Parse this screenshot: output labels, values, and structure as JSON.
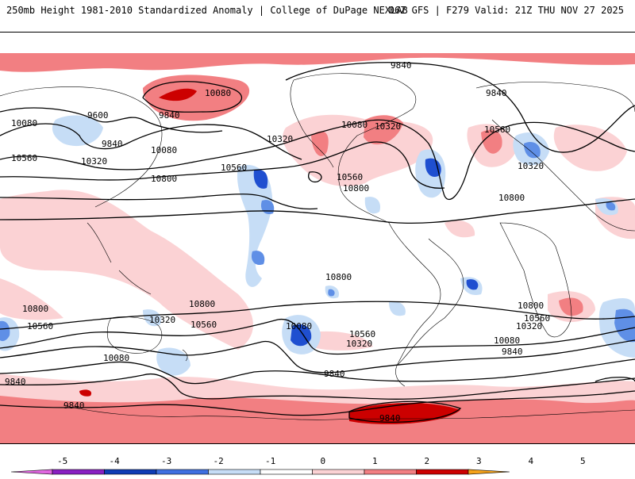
{
  "header": {
    "left": "250mb Height 1981-2010 Standardized Anomaly | College of DuPage NEXLAB",
    "right": "06Z GFS | F279 Valid: 21Z THU NOV 27 2025"
  },
  "contour_labels": [
    "9840",
    "10080",
    "9600",
    "9840",
    "10080",
    "9840",
    "10080",
    "10320",
    "10560",
    "10320",
    "10800",
    "10560",
    "10560",
    "10800",
    "10080",
    "10320",
    "9840",
    "10080",
    "10560",
    "10320",
    "10800",
    "10800",
    "10800",
    "10560",
    "10320",
    "10080",
    "10560",
    "10320",
    "10800",
    "10560",
    "10320",
    "10080",
    "9840",
    "10080",
    "9840",
    "9840",
    "9840"
  ],
  "colors": {
    "pos_light": "#fbd2d4",
    "pos_mid": "#f27f82",
    "pos_dark": "#cc0000",
    "neg_light": "#c6ddf6",
    "neg_mid": "#5f8fe6",
    "neg_dark": "#1f4fd0"
  },
  "colorbar": {
    "ticks": [
      "-5",
      "-4",
      "-3",
      "-2",
      "-1",
      "0",
      "1",
      "2",
      "3",
      "4",
      "5"
    ],
    "colors": [
      "#e066e0",
      "#8a1fc2",
      "#0f3cb5",
      "#3f6fe0",
      "#c6ddf6",
      "#ffffff",
      "#fbd2d4",
      "#f27f82",
      "#cc0000",
      "#f5a21a"
    ]
  }
}
